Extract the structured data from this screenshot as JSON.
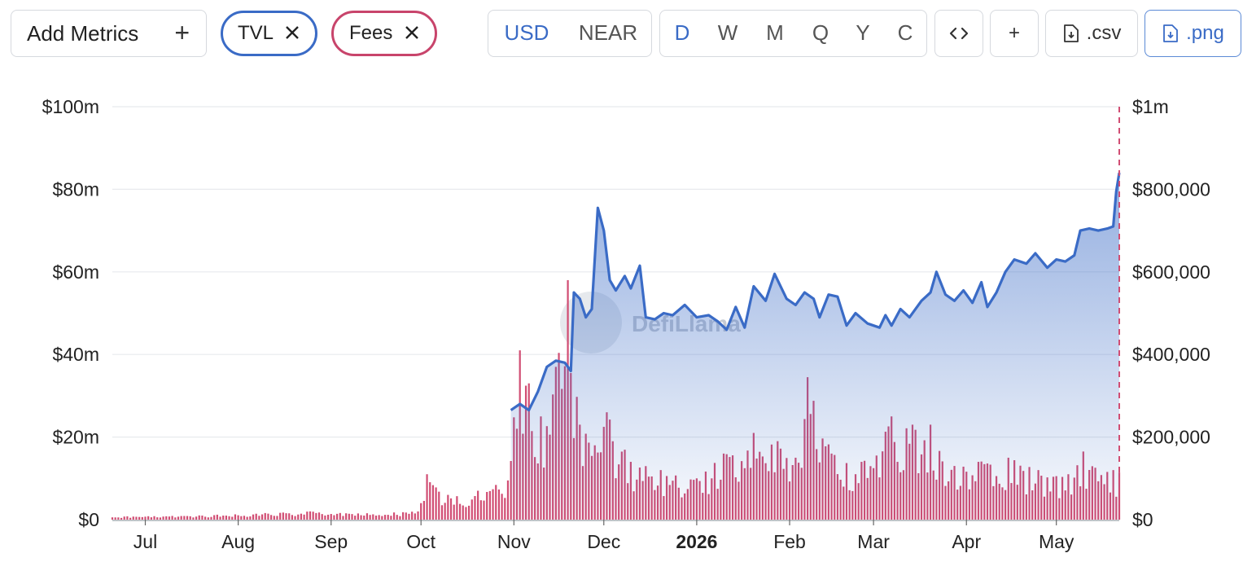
{
  "toolbar": {
    "add_metrics_label": "Add Metrics",
    "add_metrics_plus": "+",
    "pills": [
      {
        "label": "TVL",
        "color": "#3a6bc6"
      },
      {
        "label": "Fees",
        "color": "#c8446b"
      }
    ],
    "currency_options": [
      "USD",
      "NEAR"
    ],
    "currency_selected": "USD",
    "period_options": [
      "D",
      "W",
      "M",
      "Q",
      "Y",
      "C"
    ],
    "period_selected": "D",
    "embed_icon": "code-icon",
    "add_icon": "plus-icon",
    "plus_label": "+",
    "csv_label": ".csv",
    "png_label": ".png"
  },
  "watermark": "DefiLlama",
  "chart_data": {
    "type": "line+bar",
    "x_ticks": [
      "Jul",
      "Aug",
      "Sep",
      "Oct",
      "Nov",
      "Dec",
      "2026",
      "Feb",
      "Mar",
      "Apr",
      "May"
    ],
    "x_tick_dates": [
      "2025-07-01",
      "2025-08-01",
      "2025-09-01",
      "2025-10-01",
      "2025-11-01",
      "2025-12-01",
      "2026-01-01",
      "2026-02-01",
      "2026-03-01",
      "2026-04-01",
      "2026-05-01"
    ],
    "x_range": [
      "2025-06-20",
      "2026-05-22"
    ],
    "y_left": {
      "ticks": [
        "$0",
        "$20m",
        "$40m",
        "$60m",
        "$80m",
        "$100m"
      ],
      "min": 0,
      "max": 100000000
    },
    "y_right": {
      "ticks": [
        "$0",
        "$200,000",
        "$400,000",
        "$600,000",
        "$800,000",
        "$1m"
      ],
      "min": 0,
      "max": 1000000
    },
    "grid": true,
    "series": [
      {
        "name": "TVL",
        "type": "area-line",
        "axis": "left",
        "color": "#3a6bc6",
        "points": [
          [
            "2025-10-31",
            26.5
          ],
          [
            "2025-11-03",
            28
          ],
          [
            "2025-11-06",
            26.5
          ],
          [
            "2025-11-09",
            31
          ],
          [
            "2025-11-12",
            37
          ],
          [
            "2025-11-15",
            38.5
          ],
          [
            "2025-11-18",
            38
          ],
          [
            "2025-11-20",
            36
          ],
          [
            "2025-11-21",
            55
          ],
          [
            "2025-11-23",
            53.5
          ],
          [
            "2025-11-25",
            49
          ],
          [
            "2025-11-27",
            51
          ],
          [
            "2025-11-29",
            75.5
          ],
          [
            "2025-12-01",
            70
          ],
          [
            "2025-12-03",
            58
          ],
          [
            "2025-12-05",
            55.5
          ],
          [
            "2025-12-08",
            59
          ],
          [
            "2025-12-10",
            56
          ],
          [
            "2025-12-13",
            61.5
          ],
          [
            "2025-12-15",
            49
          ],
          [
            "2025-12-18",
            48.5
          ],
          [
            "2025-12-21",
            50
          ],
          [
            "2025-12-24",
            49.5
          ],
          [
            "2025-12-28",
            52
          ],
          [
            "2026-01-01",
            49
          ],
          [
            "2026-01-05",
            49.5
          ],
          [
            "2026-01-08",
            48
          ],
          [
            "2026-01-11",
            46
          ],
          [
            "2026-01-14",
            51.5
          ],
          [
            "2026-01-17",
            46.5
          ],
          [
            "2026-01-20",
            56.5
          ],
          [
            "2026-01-24",
            53
          ],
          [
            "2026-01-27",
            59.5
          ],
          [
            "2026-01-31",
            53.5
          ],
          [
            "2026-02-03",
            52
          ],
          [
            "2026-02-06",
            55
          ],
          [
            "2026-02-09",
            53.5
          ],
          [
            "2026-02-11",
            49
          ],
          [
            "2026-02-14",
            54.5
          ],
          [
            "2026-02-17",
            54
          ],
          [
            "2026-02-20",
            47
          ],
          [
            "2026-02-23",
            50
          ],
          [
            "2026-02-27",
            47.5
          ],
          [
            "2026-03-03",
            46.5
          ],
          [
            "2026-03-05",
            49.5
          ],
          [
            "2026-03-07",
            47
          ],
          [
            "2026-03-10",
            51
          ],
          [
            "2026-03-13",
            49
          ],
          [
            "2026-03-17",
            53
          ],
          [
            "2026-03-20",
            55
          ],
          [
            "2026-03-22",
            60
          ],
          [
            "2026-03-25",
            54.5
          ],
          [
            "2026-03-28",
            53
          ],
          [
            "2026-03-31",
            55.5
          ],
          [
            "2026-04-03",
            52.5
          ],
          [
            "2026-04-06",
            57.5
          ],
          [
            "2026-04-08",
            51.5
          ],
          [
            "2026-04-11",
            55
          ],
          [
            "2026-04-14",
            60
          ],
          [
            "2026-04-17",
            63
          ],
          [
            "2026-04-21",
            62
          ],
          [
            "2026-04-24",
            64.5
          ],
          [
            "2026-04-28",
            61
          ],
          [
            "2026-05-01",
            63
          ],
          [
            "2026-05-04",
            62.5
          ],
          [
            "2026-05-07",
            64
          ],
          [
            "2026-05-09",
            70
          ],
          [
            "2026-05-12",
            70.5
          ],
          [
            "2026-05-15",
            70
          ],
          [
            "2026-05-18",
            70.5
          ],
          [
            "2026-05-20",
            71
          ],
          [
            "2026-05-21",
            79.5
          ],
          [
            "2026-05-22",
            84
          ]
        ]
      },
      {
        "name": "Fees",
        "type": "bar",
        "axis": "right",
        "color": "#d14d73",
        "points": [
          [
            "2025-06-25",
            8000
          ],
          [
            "2025-07-10",
            9000
          ],
          [
            "2025-07-25",
            12000
          ],
          [
            "2025-08-10",
            16000
          ],
          [
            "2025-08-25",
            20000
          ],
          [
            "2025-09-10",
            15000
          ],
          [
            "2025-09-25",
            18000
          ],
          [
            "2025-10-01",
            40000
          ],
          [
            "2025-10-03",
            110000
          ],
          [
            "2025-10-10",
            60000
          ],
          [
            "2025-10-20",
            70000
          ],
          [
            "2025-10-30",
            95000
          ],
          [
            "2025-11-03",
            410000
          ],
          [
            "2025-11-06",
            330000
          ],
          [
            "2025-11-10",
            250000
          ],
          [
            "2025-11-15",
            370000
          ],
          [
            "2025-11-19",
            580000
          ],
          [
            "2025-11-23",
            230000
          ],
          [
            "2025-11-28",
            180000
          ],
          [
            "2025-12-02",
            260000
          ],
          [
            "2025-12-10",
            140000
          ],
          [
            "2025-12-20",
            120000
          ],
          [
            "2026-01-01",
            100000
          ],
          [
            "2026-01-10",
            160000
          ],
          [
            "2026-01-20",
            210000
          ],
          [
            "2026-01-28",
            190000
          ],
          [
            "2026-02-03",
            150000
          ],
          [
            "2026-02-07",
            345000
          ],
          [
            "2026-02-15",
            160000
          ],
          [
            "2026-02-25",
            140000
          ],
          [
            "2026-03-07",
            250000
          ],
          [
            "2026-03-14",
            230000
          ],
          [
            "2026-03-20",
            230000
          ],
          [
            "2026-03-28",
            130000
          ],
          [
            "2026-04-05",
            140000
          ],
          [
            "2026-04-15",
            150000
          ],
          [
            "2026-04-25",
            120000
          ],
          [
            "2026-05-05",
            110000
          ],
          [
            "2026-05-10",
            165000
          ],
          [
            "2026-05-20",
            120000
          ]
        ]
      }
    ]
  }
}
